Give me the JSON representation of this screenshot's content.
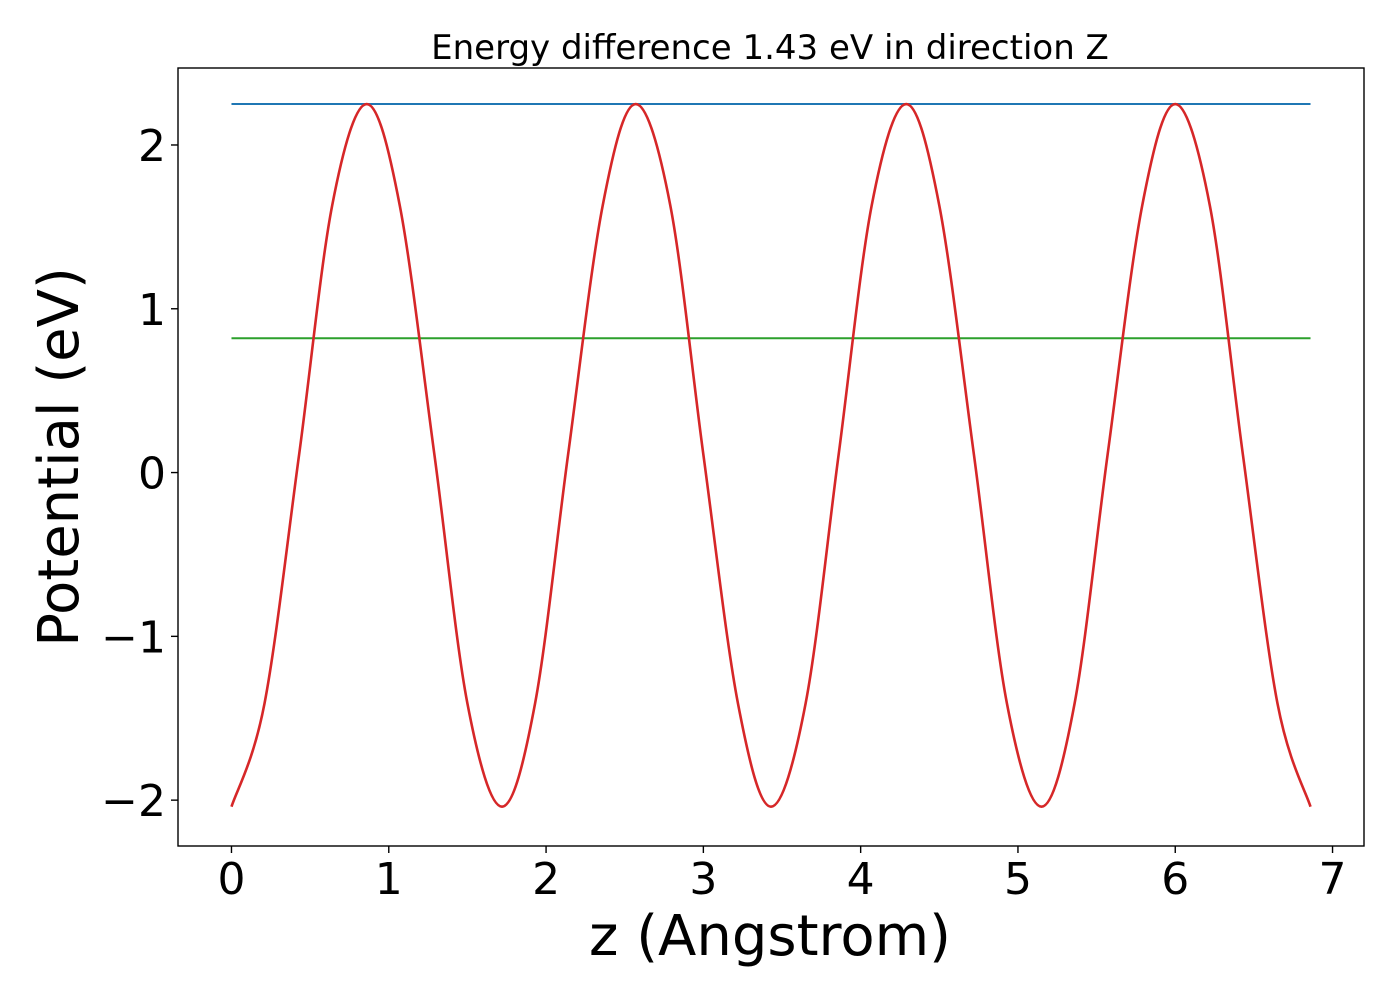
{
  "chart_data": {
    "type": "line",
    "title": "Energy difference 1.43 eV in direction Z",
    "xlabel": "z (Angstrom)",
    "ylabel": "Potential (eV)",
    "xlim": [
      -0.34,
      7.2
    ],
    "ylim": [
      -2.28,
      2.47
    ],
    "xticks": [
      0,
      1,
      2,
      3,
      4,
      5,
      6,
      7
    ],
    "xtick_labels": [
      "0",
      "1",
      "2",
      "3",
      "4",
      "5",
      "6",
      "7"
    ],
    "yticks": [
      -2,
      -1,
      0,
      1,
      2
    ],
    "ytick_labels": [
      "−2",
      "−1",
      "0",
      "1",
      "2"
    ],
    "grid": false,
    "series": [
      {
        "color": "#1f77b4",
        "x": [
          0,
          6.86
        ],
        "y": [
          2.25,
          2.25
        ]
      },
      {
        "color": "#2ca02c",
        "x": [
          0,
          6.86
        ],
        "y": [
          0.82,
          0.82
        ]
      },
      {
        "color": "#d62728",
        "x": [
          0,
          0.21,
          0.43,
          0.64,
          0.86,
          1.07,
          1.29,
          1.5,
          1.72,
          1.93,
          2.14,
          2.36,
          2.57,
          2.79,
          3.0,
          3.22,
          3.43,
          3.65,
          3.86,
          4.07,
          4.29,
          4.5,
          4.72,
          4.93,
          5.15,
          5.36,
          5.57,
          5.79,
          6.0,
          6.22,
          6.43,
          6.65,
          6.86
        ],
        "y": [
          -2.04,
          -1.41,
          0.11,
          1.63,
          2.25,
          1.63,
          0.11,
          -1.41,
          -2.04,
          -1.41,
          0.11,
          1.63,
          2.25,
          1.63,
          0.11,
          -1.41,
          -2.04,
          -1.41,
          0.11,
          1.63,
          2.25,
          1.63,
          0.11,
          -1.41,
          -2.04,
          -1.41,
          0.11,
          1.63,
          2.25,
          1.63,
          0.11,
          -1.41,
          -2.04
        ]
      }
    ]
  }
}
